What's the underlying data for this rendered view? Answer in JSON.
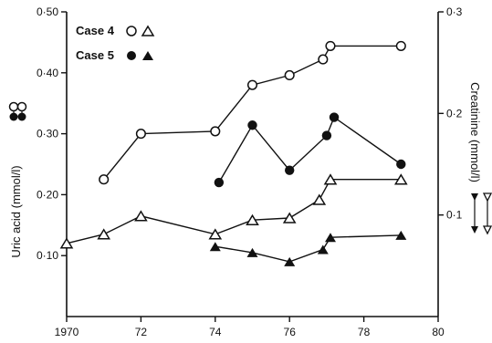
{
  "chart_data": {
    "type": "line",
    "title": "",
    "xlabel": "",
    "ylabel_left": "Uric acid (mmol/l)",
    "ylabel_right": "Creatinine (mmol/l)",
    "xlim": [
      1970,
      1980
    ],
    "ylim_left": [
      0.0,
      0.5
    ],
    "ylim_right": [
      0.0,
      0.3
    ],
    "x_ticks": [
      1970,
      1972,
      1974,
      1976,
      1978,
      1980
    ],
    "x_tick_labels": [
      "1970",
      "72",
      "74",
      "76",
      "78",
      "80"
    ],
    "y_left_ticks": [
      0.1,
      0.2,
      0.3,
      0.4,
      0.5
    ],
    "y_left_tick_labels": [
      "0·10",
      "0·20",
      "0·30",
      "0·40",
      "0·50"
    ],
    "y_right_ticks": [
      0.1,
      0.2,
      0.3
    ],
    "y_right_tick_labels": [
      "0·1",
      "0·2",
      "0·3"
    ],
    "grid": false,
    "legend": [
      {
        "label": "Case 4",
        "markers": [
          "open-circle",
          "open-triangle"
        ]
      },
      {
        "label": "Case 5",
        "markers": [
          "filled-circle",
          "filled-triangle"
        ]
      }
    ],
    "series": [
      {
        "case": "Case 4",
        "measure": "uric acid",
        "axis": "left",
        "marker": "open-circle",
        "x": [
          1971.0,
          1972.0,
          1974.0,
          1975.0,
          1976.0,
          1976.9,
          1977.1,
          1979.0
        ],
        "y": [
          0.225,
          0.3,
          0.304,
          0.38,
          0.396,
          0.422,
          0.444,
          0.444
        ]
      },
      {
        "case": "Case 5",
        "measure": "uric acid",
        "axis": "left",
        "marker": "filled-circle",
        "x": [
          1974.1,
          1975.0,
          1976.0,
          1977.0,
          1977.2,
          1979.0
        ],
        "y": [
          0.22,
          0.314,
          0.24,
          0.297,
          0.327,
          0.25
        ]
      },
      {
        "case": "Case 4",
        "measure": "creatinine",
        "axis": "right",
        "marker": "open-triangle",
        "x": [
          1970.0,
          1971.0,
          1972.0,
          1974.0,
          1975.0,
          1976.0,
          1976.8,
          1977.1,
          1979.0
        ],
        "y": [
          0.072,
          0.081,
          0.099,
          0.081,
          0.095,
          0.097,
          0.115,
          0.135,
          0.135
        ]
      },
      {
        "case": "Case 5",
        "measure": "creatinine",
        "axis": "right",
        "marker": "filled-triangle",
        "x": [
          1974.0,
          1975.0,
          1976.0,
          1976.9,
          1977.1,
          1979.0
        ],
        "y": [
          0.069,
          0.063,
          0.054,
          0.066,
          0.078,
          0.08
        ]
      }
    ]
  }
}
